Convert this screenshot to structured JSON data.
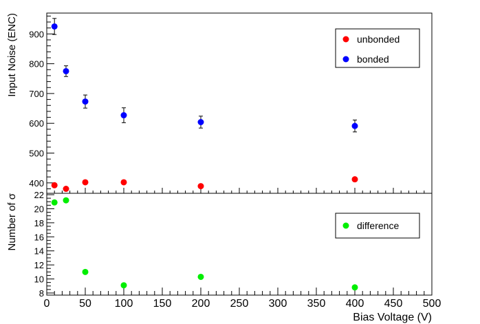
{
  "chart_data": [
    {
      "type": "scatter",
      "panel": "top",
      "ylabel": "Input Noise (ENC)",
      "xlim": [
        0,
        500
      ],
      "ylim": [
        365,
        970
      ],
      "y_ticks": [
        400,
        500,
        600,
        700,
        800,
        900
      ],
      "legend_position": "top-right",
      "series": [
        {
          "name": "unbonded",
          "color": "#ff0000",
          "points": [
            {
              "x": 10,
              "y": 392
            },
            {
              "x": 25,
              "y": 380
            },
            {
              "x": 50,
              "y": 402
            },
            {
              "x": 100,
              "y": 402
            },
            {
              "x": 200,
              "y": 389
            },
            {
              "x": 400,
              "y": 412
            }
          ]
        },
        {
          "name": "bonded",
          "color": "#0000ff",
          "points": [
            {
              "x": 10,
              "y": 925,
              "err": 27
            },
            {
              "x": 25,
              "y": 775,
              "err": 18
            },
            {
              "x": 50,
              "y": 673,
              "err": 22
            },
            {
              "x": 100,
              "y": 627,
              "err": 25
            },
            {
              "x": 200,
              "y": 604,
              "err": 20
            },
            {
              "x": 400,
              "y": 591,
              "err": 20
            }
          ]
        }
      ]
    },
    {
      "type": "scatter",
      "panel": "bottom",
      "xlabel": "Bias Voltage (V)",
      "ylabel": "Number of σ",
      "xlim": [
        0,
        500
      ],
      "ylim": [
        7.7,
        22.2
      ],
      "x_ticks": [
        0,
        50,
        100,
        150,
        200,
        250,
        300,
        350,
        400,
        450,
        500
      ],
      "y_ticks": [
        8,
        10,
        12,
        14,
        16,
        18,
        20,
        22
      ],
      "legend_position": "top-right",
      "series": [
        {
          "name": "difference",
          "color": "#00ee00",
          "points": [
            {
              "x": 10,
              "y": 20.9
            },
            {
              "x": 25,
              "y": 21.2
            },
            {
              "x": 50,
              "y": 11.0
            },
            {
              "x": 100,
              "y": 9.1
            },
            {
              "x": 200,
              "y": 10.3
            },
            {
              "x": 400,
              "y": 8.8
            }
          ]
        }
      ]
    }
  ]
}
